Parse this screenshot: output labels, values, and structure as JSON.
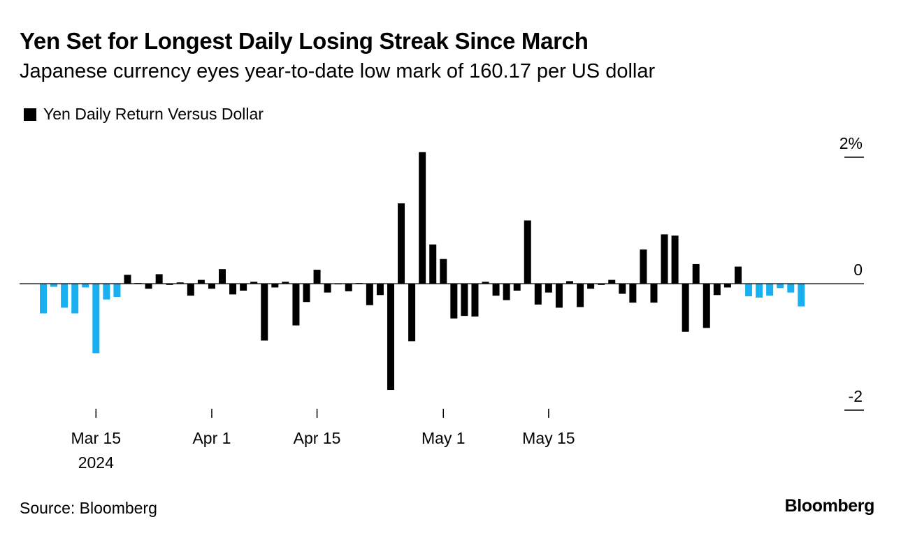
{
  "title": "Yen Set for Longest Daily Losing Streak Since March",
  "subtitle": "Japanese currency eyes year-to-date low mark of 160.17 per US dollar",
  "legend": {
    "label": "Yen Daily Return Versus Dollar"
  },
  "source": "Source: Bloomberg",
  "brand": "Bloomberg",
  "colors": {
    "bar": "#000000",
    "highlight": "#18b0f0",
    "axis": "#000000"
  },
  "chart_data": {
    "type": "bar",
    "title": "Yen Set for Longest Daily Losing Streak Since March",
    "series_name": "Yen Daily Return Versus Dollar",
    "unit": "%",
    "ylim": [
      -2,
      2
    ],
    "y_ticks": [
      {
        "value": 2,
        "label": "2%"
      },
      {
        "value": 0,
        "label": "0"
      },
      {
        "value": -2,
        "label": "-2"
      }
    ],
    "x_ticks": [
      {
        "index": 5,
        "label": "Mar 15",
        "sublabel": "2024"
      },
      {
        "index": 16,
        "label": "Apr 1",
        "sublabel": ""
      },
      {
        "index": 26,
        "label": "Apr 15",
        "sublabel": ""
      },
      {
        "index": 38,
        "label": "May 1",
        "sublabel": ""
      },
      {
        "index": 48,
        "label": "May 15",
        "sublabel": ""
      }
    ],
    "values": [
      -0.47,
      -0.05,
      -0.38,
      -0.47,
      -0.06,
      -1.1,
      -0.25,
      -0.21,
      0.14,
      0.01,
      -0.08,
      0.15,
      -0.02,
      0.02,
      -0.19,
      0.06,
      -0.08,
      0.23,
      -0.17,
      -0.11,
      0.03,
      -0.9,
      -0.06,
      0.03,
      -0.66,
      -0.29,
      0.22,
      -0.14,
      0.0,
      -0.12,
      0.01,
      -0.34,
      -0.18,
      -1.68,
      1.27,
      -0.91,
      2.08,
      0.62,
      0.39,
      -0.55,
      -0.51,
      -0.52,
      0.03,
      -0.19,
      -0.26,
      -0.11,
      1.0,
      -0.33,
      -0.14,
      -0.38,
      0.04,
      -0.37,
      -0.08,
      -0.02,
      0.06,
      -0.16,
      -0.3,
      0.54,
      -0.3,
      0.78,
      0.76,
      -0.76,
      0.31,
      -0.7,
      -0.18,
      -0.06,
      0.27,
      -0.2,
      -0.22,
      -0.19,
      -0.07,
      -0.14,
      -0.36
    ],
    "highlight_indices": [
      0,
      1,
      2,
      3,
      4,
      5,
      6,
      7,
      67,
      68,
      69,
      70,
      71,
      72
    ]
  }
}
